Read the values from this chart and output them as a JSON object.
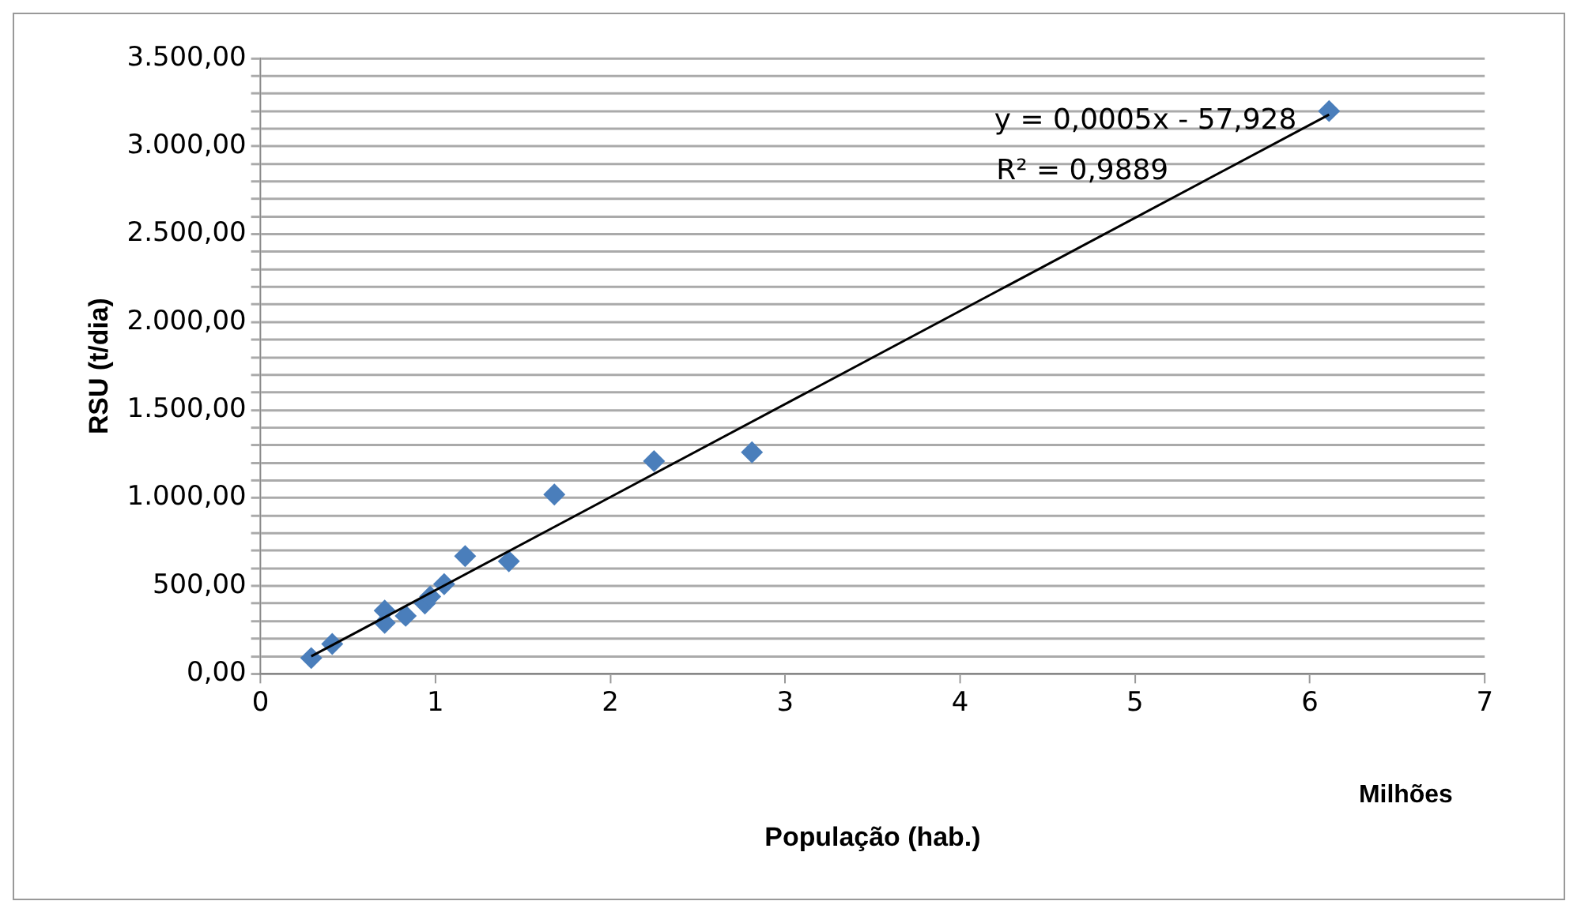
{
  "chart_data": {
    "type": "scatter",
    "xlabel": "População (hab.)",
    "ylabel": "RSU (t/dia)",
    "annotations": [
      "y = 0,0005x - 57,928",
      "R² = 0,9889",
      "Milhões"
    ],
    "xlim": [
      0,
      7
    ],
    "xticks": [
      0,
      1,
      2,
      3,
      4,
      5,
      6,
      7
    ],
    "ylim": [
      0,
      3500
    ],
    "yticks": [
      {
        "value": 0,
        "label": "0,00"
      },
      {
        "value": 100,
        "label": null
      },
      {
        "value": 200,
        "label": null
      },
      {
        "value": 300,
        "label": null
      },
      {
        "value": 400,
        "label": null
      },
      {
        "value": 500,
        "label": "500,00"
      },
      {
        "value": 600,
        "label": null
      },
      {
        "value": 700,
        "label": null
      },
      {
        "value": 800,
        "label": null
      },
      {
        "value": 900,
        "label": null
      },
      {
        "value": 1000,
        "label": "1.000,00"
      },
      {
        "value": 1100,
        "label": null
      },
      {
        "value": 1200,
        "label": null
      },
      {
        "value": 1300,
        "label": null
      },
      {
        "value": 1400,
        "label": null
      },
      {
        "value": 1500,
        "label": "1.500,00"
      },
      {
        "value": 1600,
        "label": null
      },
      {
        "value": 1700,
        "label": null
      },
      {
        "value": 1800,
        "label": null
      },
      {
        "value": 1900,
        "label": null
      },
      {
        "value": 2000,
        "label": "2.000,00"
      },
      {
        "value": 2100,
        "label": null
      },
      {
        "value": 2200,
        "label": null
      },
      {
        "value": 2300,
        "label": null
      },
      {
        "value": 2400,
        "label": null
      },
      {
        "value": 2500,
        "label": "2.500,00"
      },
      {
        "value": 2600,
        "label": null
      },
      {
        "value": 2700,
        "label": null
      },
      {
        "value": 2800,
        "label": null
      },
      {
        "value": 2900,
        "label": null
      },
      {
        "value": 3000,
        "label": "3.000,00"
      },
      {
        "value": 3100,
        "label": null
      },
      {
        "value": 3200,
        "label": null
      },
      {
        "value": 3300,
        "label": null
      },
      {
        "value": 3400,
        "label": null
      },
      {
        "value": 3500,
        "label": "3.500,00"
      }
    ],
    "grid": "y",
    "legend": false,
    "series": [
      {
        "marker": "diamond",
        "color": "#4a7ebb",
        "x": [
          0.29,
          0.41,
          0.71,
          0.71,
          0.83,
          0.94,
          0.97,
          1.05,
          1.17,
          1.42,
          1.68,
          2.25,
          2.81,
          6.11
        ],
        "values": [
          90,
          170,
          360,
          290,
          330,
          400,
          440,
          510,
          670,
          640,
          1020,
          1210,
          1260,
          3200
        ]
      },
      {
        "type": "line",
        "color": "#000000",
        "line_style": "solid",
        "x": [
          0.29,
          6.11
        ],
        "values": [
          100,
          3180
        ]
      }
    ]
  }
}
